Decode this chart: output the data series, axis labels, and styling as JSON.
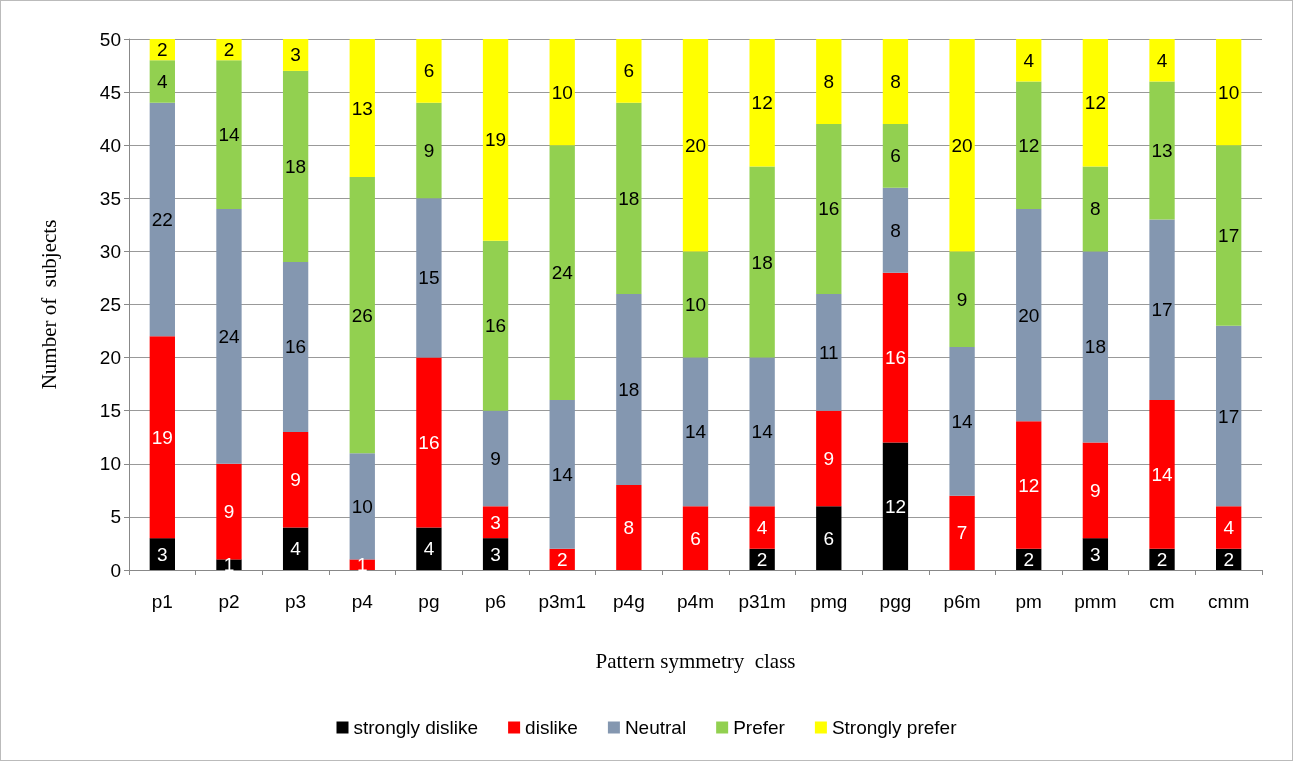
{
  "chart_data": {
    "type": "bar",
    "stacked": true,
    "xlabel": "Pattern symmetry  class",
    "ylabel": "Number of  subjects",
    "categories": [
      "p1",
      "p2",
      "p3",
      "p4",
      "pg",
      "p6",
      "p3m1",
      "p4g",
      "p4m",
      "p31m",
      "pmg",
      "pgg",
      "p6m",
      "pm",
      "pmm",
      "cm",
      "cmm"
    ],
    "series": [
      {
        "name": "strongly dislike",
        "color": "#000000",
        "values": [
          3,
          1,
          4,
          0,
          4,
          3,
          0,
          0,
          0,
          2,
          6,
          12,
          0,
          2,
          3,
          2,
          2
        ],
        "value_labels": [
          "3",
          "1",
          "4",
          null,
          "4",
          "3",
          null,
          null,
          null,
          "2",
          "6",
          "12",
          null,
          "2",
          "3",
          "2",
          "2"
        ]
      },
      {
        "name": "dislike",
        "color": "#ff0000",
        "values": [
          19,
          9,
          9,
          1,
          16,
          3,
          2,
          8,
          6,
          4,
          9,
          16,
          7,
          12,
          9,
          14,
          4
        ],
        "value_labels": [
          "19",
          "9",
          "9",
          "1",
          "16",
          "3",
          "2",
          "8",
          "6",
          "4",
          "9",
          "16",
          "7",
          "12",
          "9",
          "14",
          "4"
        ]
      },
      {
        "name": "Neutral",
        "color": "#8497b0",
        "values": [
          22,
          24,
          16,
          10,
          15,
          9,
          14,
          18,
          14,
          14,
          11,
          8,
          14,
          20,
          18,
          17,
          17
        ],
        "value_labels": [
          "22",
          "24",
          "16",
          "10",
          "15",
          "9",
          "14",
          "18",
          "14",
          "14",
          "11",
          "8",
          "14",
          "20",
          "18",
          "17",
          "17"
        ]
      },
      {
        "name": "Prefer",
        "color": "#92d050",
        "values": [
          4,
          14,
          18,
          26,
          9,
          16,
          24,
          18,
          10,
          18,
          16,
          6,
          9,
          12,
          8,
          13,
          17
        ],
        "value_labels": [
          "4",
          "14",
          "18",
          "26",
          "9",
          "16",
          "24",
          "18",
          "10",
          "18",
          "16",
          "6",
          "9",
          "12",
          "8",
          "13",
          "17"
        ]
      },
      {
        "name": "Strongly prefer",
        "color": "#ffff00",
        "values": [
          2,
          2,
          3,
          13,
          6,
          19,
          10,
          6,
          20,
          12,
          8,
          8,
          20,
          4,
          12,
          4,
          10
        ],
        "value_labels": [
          "2",
          "2",
          "3",
          "13",
          "6",
          "19",
          "10",
          "6",
          "20",
          "12",
          "8",
          "8",
          "20",
          "4",
          "12",
          "4",
          "10"
        ]
      }
    ],
    "ylim": [
      0,
      50
    ],
    "yticks": [
      0,
      5,
      10,
      15,
      20,
      25,
      30,
      35,
      40,
      45,
      50
    ],
    "grid": "y",
    "legend": "bottom"
  }
}
